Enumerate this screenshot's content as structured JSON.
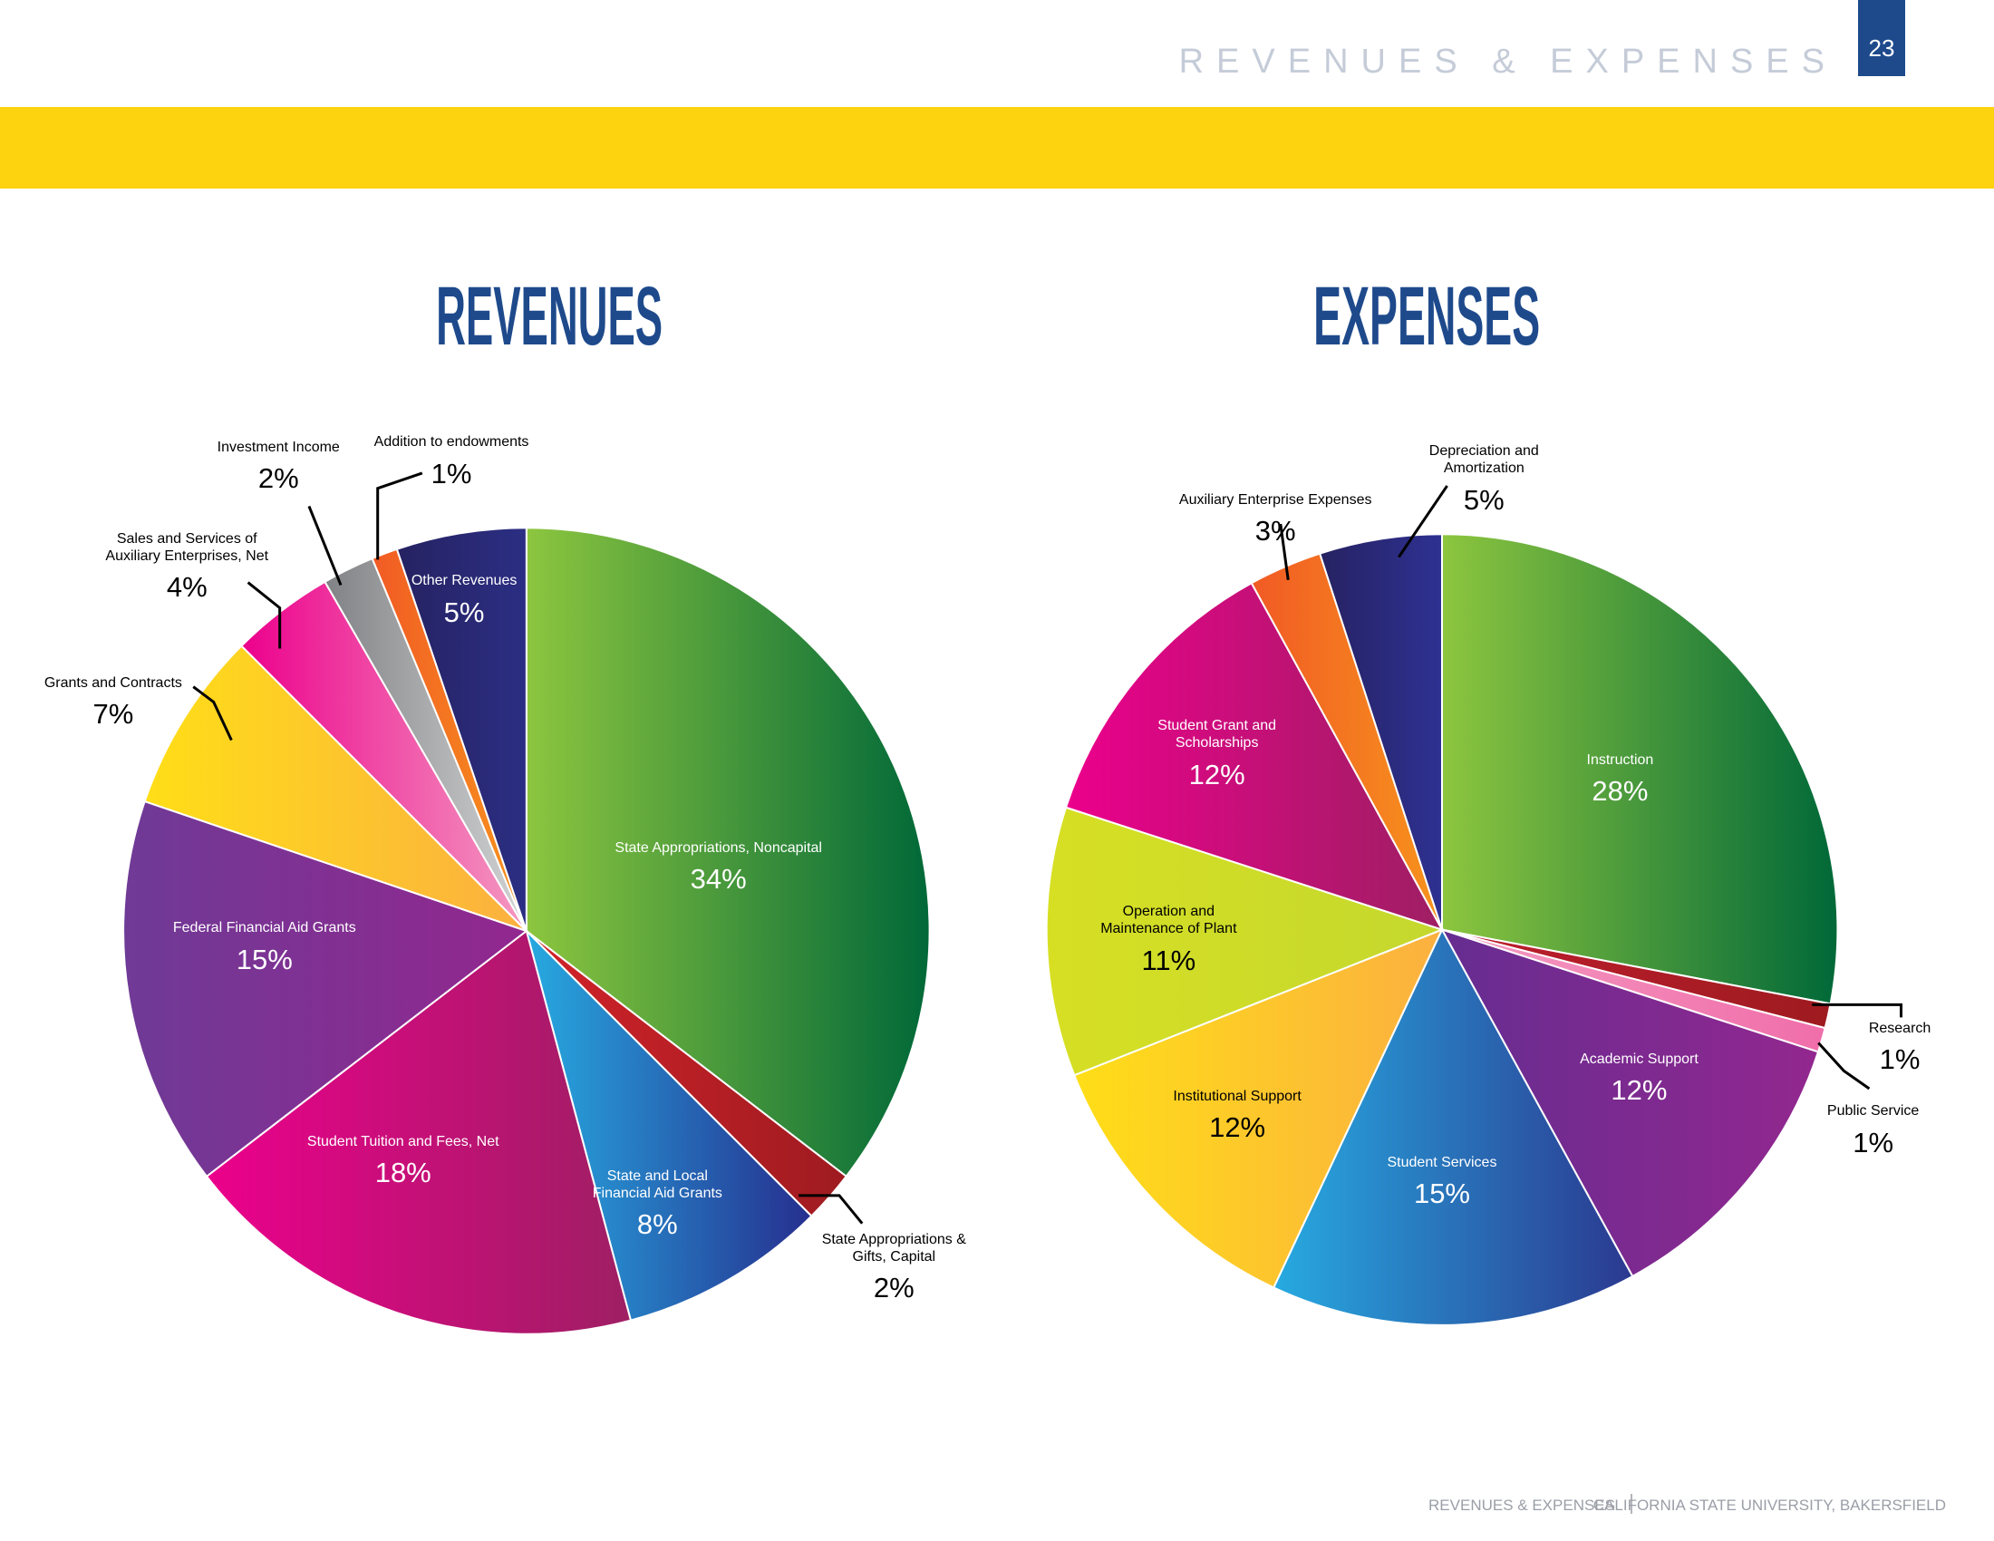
{
  "header": {
    "title": "REVENUES & EXPENSES",
    "page": 23
  },
  "footer": {
    "section": "REVENUES & EXPENSES",
    "org": "CALIFORNIA STATE UNIVERSITY, BAKERSFIELD"
  },
  "chart_data": [
    {
      "type": "pie",
      "title": "REVENUES",
      "labels": [
        "State Appropriations, Noncapital",
        "State Appropriations & Gifts, Capital",
        "State and Local Financial Aid Grants",
        "Student Tuition and Fees, Net",
        "Federal Financial Aid Grants",
        "Grants and Contracts",
        "Sales and Services of Auxiliary Enterprises, Net",
        "Investment Income",
        "Addition to endowments",
        "Other Revenues"
      ],
      "values": [
        34,
        2,
        8,
        18,
        15,
        7,
        4,
        2,
        1,
        5
      ],
      "value_labels": [
        "34%",
        "2%",
        "8%",
        "18%",
        "15%",
        "7%",
        "4%",
        "2%",
        "1%",
        "5%"
      ],
      "colors": [
        [
          "#8dc63f",
          "#006838"
        ],
        [
          "#d2232a",
          "#9e1b20"
        ],
        [
          "#27aae1",
          "#262f8f"
        ],
        [
          "#ec008c",
          "#9e1f63"
        ],
        [
          "#6f3a96",
          "#92278f"
        ],
        [
          "#ffde17",
          "#fbb040"
        ],
        [
          "#ec008c",
          "#f49ac1"
        ],
        [
          "#808285",
          "#d1d3d4"
        ],
        [
          "#f15a24",
          "#f7941d"
        ],
        [
          "#262262",
          "#2b2e83"
        ]
      ]
    },
    {
      "type": "pie",
      "title": "EXPENSES",
      "labels": [
        "Instruction",
        "Research",
        "Public Service",
        "Academic Support",
        "Student Services",
        "Institutional Support",
        "Operation and Maintenance of Plant",
        "Student Grant and Scholarships",
        "Auxiliary Enterprise Expenses",
        "Depreciation and Amortization"
      ],
      "values": [
        28,
        1,
        1,
        12,
        15,
        12,
        11,
        12,
        3,
        5
      ],
      "value_labels": [
        "28%",
        "1%",
        "1%",
        "12%",
        "15%",
        "12%",
        "11%",
        "12%",
        "3%",
        "5%"
      ],
      "colors": [
        [
          "#8dc63f",
          "#006838"
        ],
        [
          "#be1e2d",
          "#9e1b20"
        ],
        [
          "#f49ac1",
          "#f06eaa"
        ],
        [
          "#662d91",
          "#92278f"
        ],
        [
          "#27aae1",
          "#2b3990"
        ],
        [
          "#ffde17",
          "#fbb040"
        ],
        [
          "#d7df23",
          "#c4d82e"
        ],
        [
          "#ec008c",
          "#9e1f63"
        ],
        [
          "#f15a24",
          "#f7941d"
        ],
        [
          "#262262",
          "#2e3192"
        ]
      ]
    }
  ]
}
